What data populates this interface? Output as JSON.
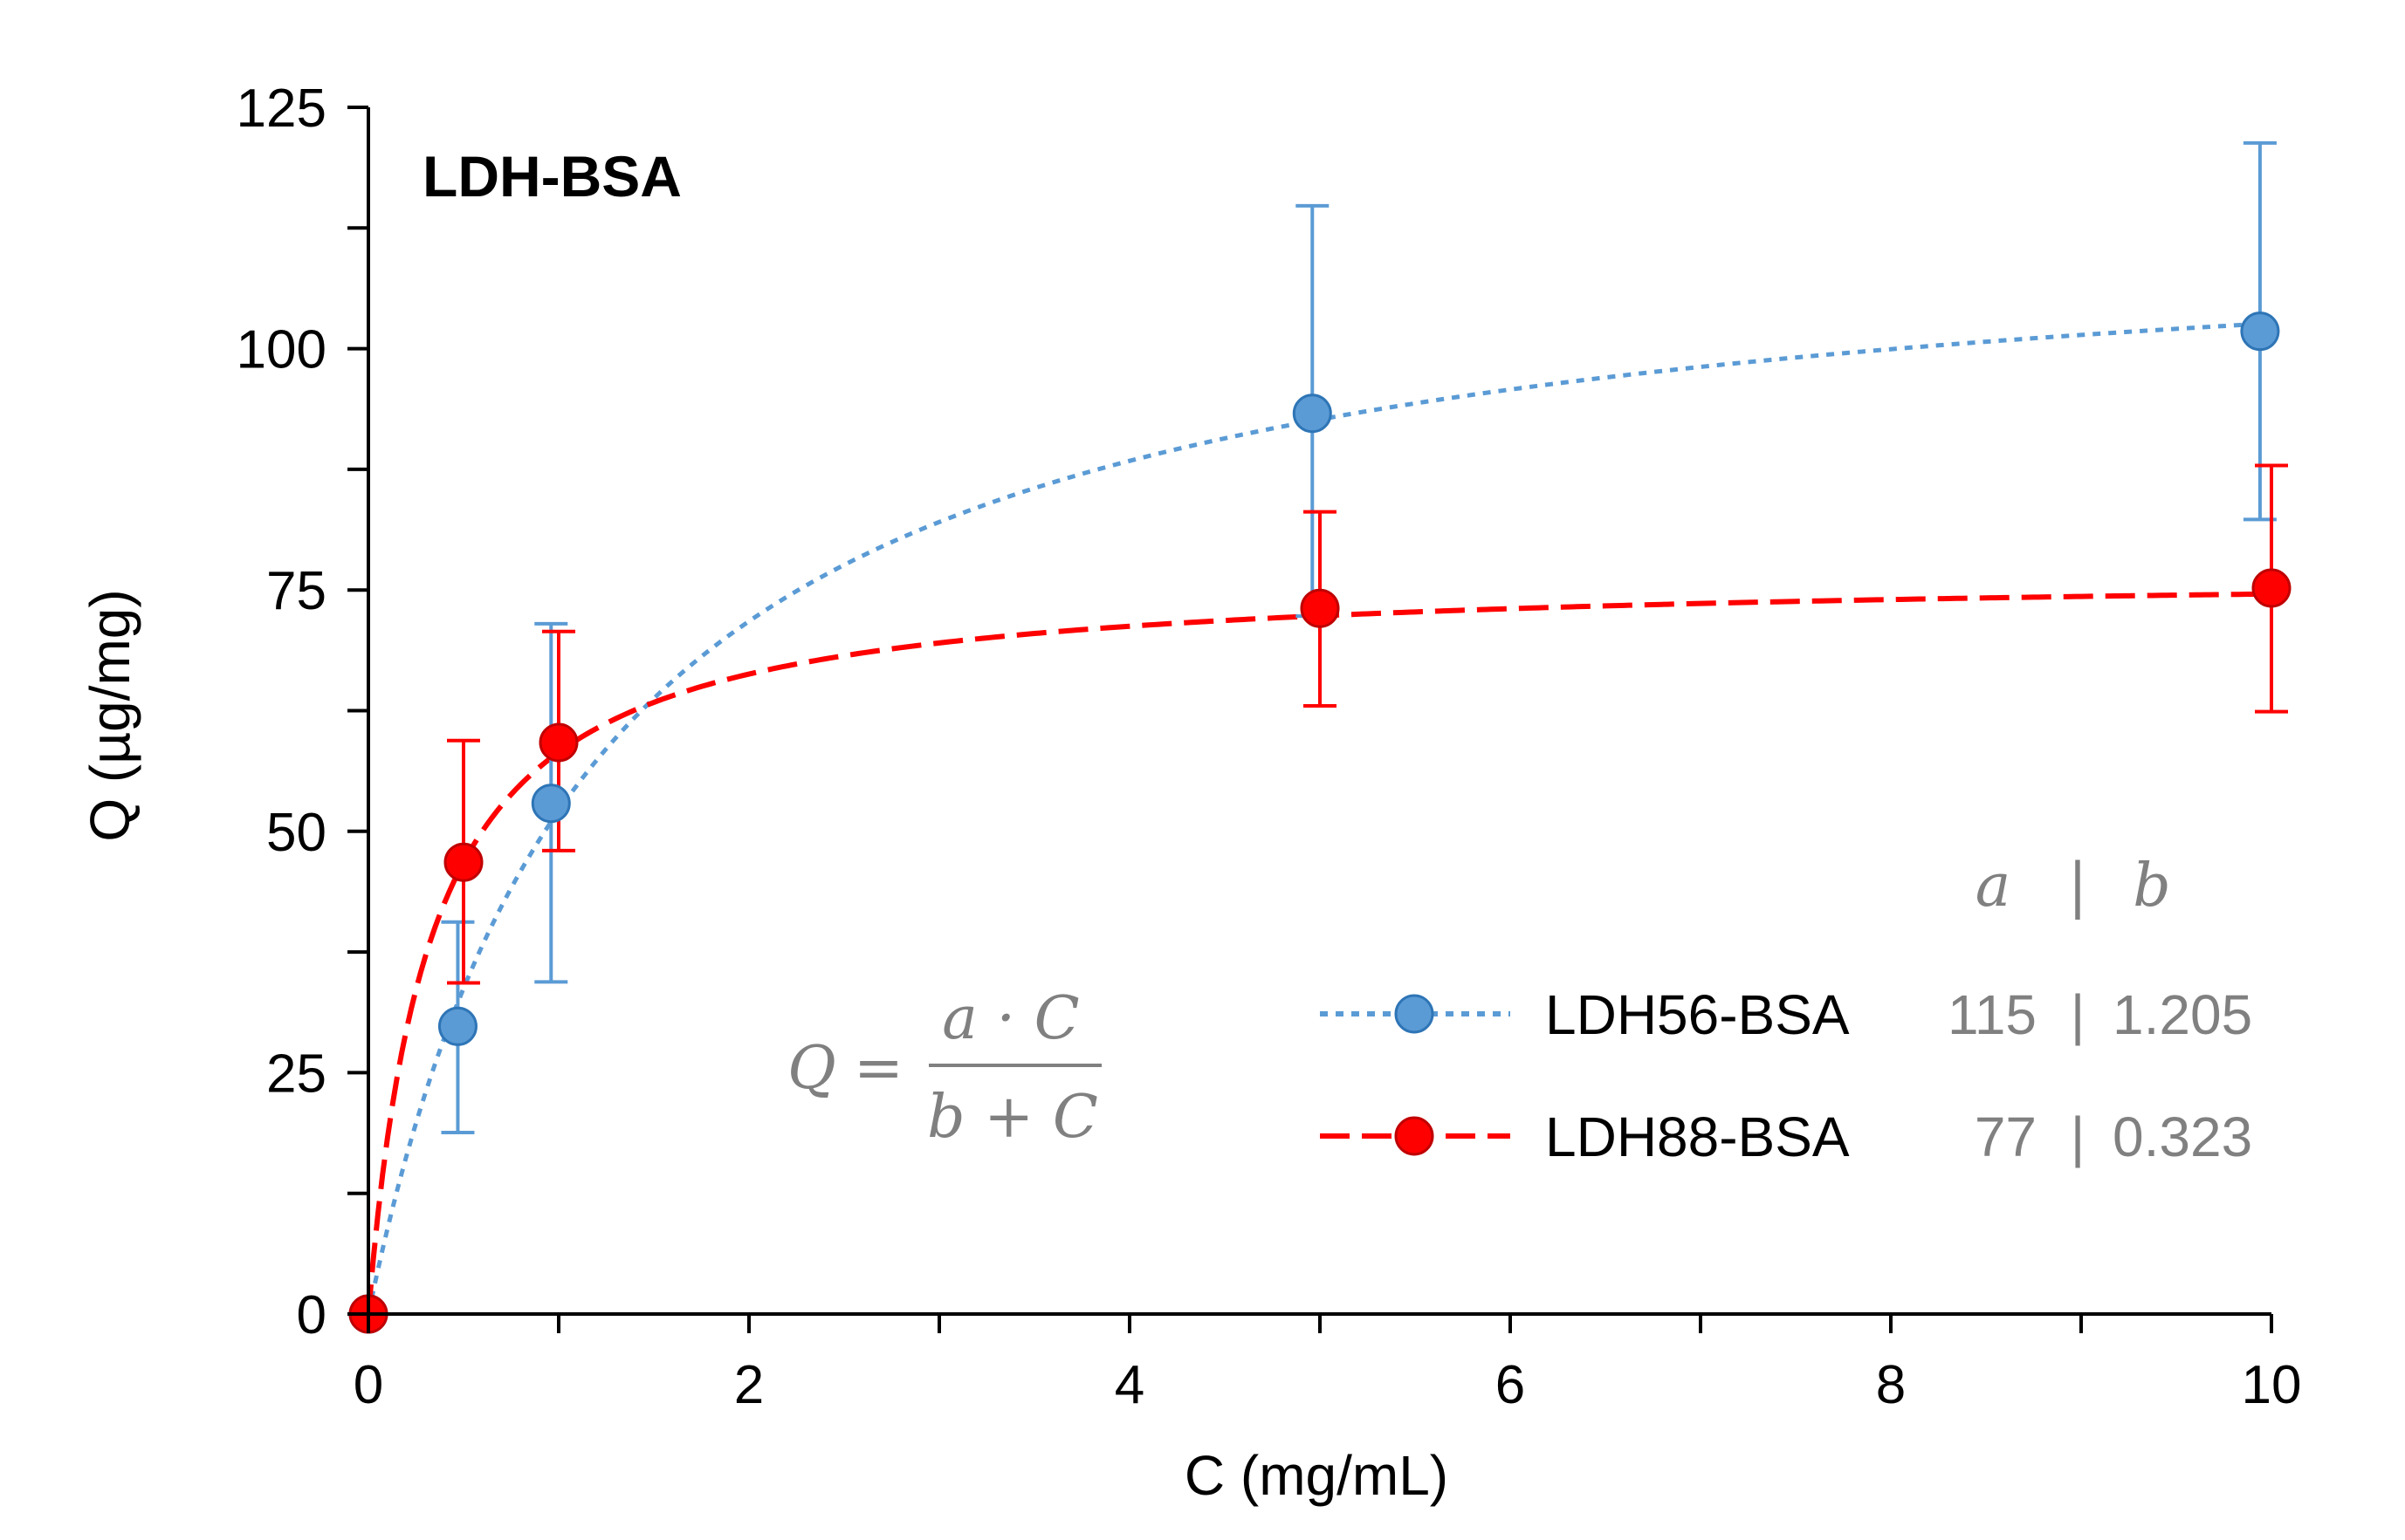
{
  "chart_data": {
    "type": "scatter",
    "title": "LDH-BSA",
    "xlabel": "C (mg/mL)",
    "ylabel": "Q (µg/mg)",
    "xlim": [
      0,
      10
    ],
    "ylim": [
      0,
      125
    ],
    "x_ticks": [
      0,
      2,
      4,
      6,
      8,
      10
    ],
    "x_tick_labels": [
      "0",
      "2",
      "4",
      "6",
      "8",
      "10"
    ],
    "y_ticks": [
      0,
      25,
      50,
      75,
      100,
      125
    ],
    "y_tick_labels": [
      "0",
      "25",
      "50",
      "75",
      "100",
      "125"
    ],
    "grid": false,
    "legend_position": "bottom-right",
    "equation": {
      "lhs": "Q",
      "equals": "=",
      "numerator": "a · C",
      "denominator": "b + C"
    },
    "params_header": {
      "a": "a",
      "sep": "|",
      "b": "b"
    },
    "series": [
      {
        "name": "LDH56-BSA",
        "color": "#5b9bd5",
        "marker_fill": "#5b9bd5",
        "marker_edge": "#2e75b6",
        "line_style": "dotted",
        "x": [
          0,
          0.47,
          0.96,
          4.96,
          9.94
        ],
        "y": [
          0,
          29.8,
          52.9,
          93.3,
          101.8
        ],
        "err_low": [
          0,
          11,
          18.5,
          21,
          19.5
        ],
        "err_high": [
          0,
          10.8,
          18.6,
          21.5,
          19.5
        ],
        "fit_a": 115,
        "fit_b": 1.205,
        "params_text": {
          "a": "115",
          "sep": "|",
          "b": "1.205"
        }
      },
      {
        "name": "LDH88-BSA",
        "color": "#ff0000",
        "marker_fill": "#ff0000",
        "marker_edge": "#c00000",
        "line_style": "dashed",
        "x": [
          0,
          0.5,
          1.0,
          5.0,
          10.0
        ],
        "y": [
          0,
          46.8,
          59.2,
          73.1,
          75.2
        ],
        "err_low": [
          0,
          12.5,
          11.2,
          10.1,
          12.8
        ],
        "err_high": [
          0,
          12.6,
          11.5,
          10.0,
          12.7
        ],
        "fit_a": 77,
        "fit_b": 0.323,
        "params_text": {
          "a": "77",
          "sep": "|",
          "b": "0.323"
        }
      }
    ]
  }
}
